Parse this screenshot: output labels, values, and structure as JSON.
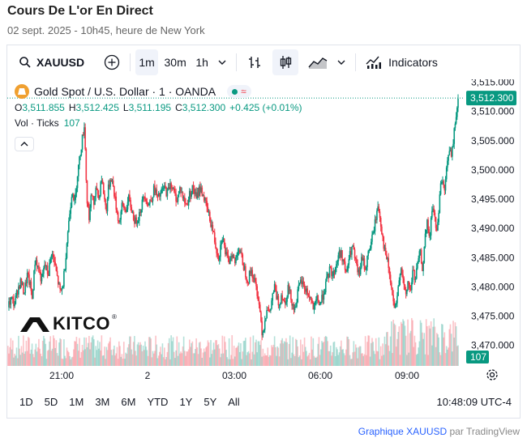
{
  "page": {
    "title": "Cours De L'or En Direct",
    "subtitle": "02 sept. 2025 - 10h45, heure de New York"
  },
  "toolbar": {
    "symbol": "XAUUSD",
    "intervals": [
      "1m",
      "30m",
      "1h"
    ],
    "active_interval": "1m",
    "indicators_label": "Indicators"
  },
  "legend": {
    "title": "Gold Spot / U.S. Dollar · 1 · OANDA",
    "open_label": "O",
    "open": "3,511.855",
    "high_label": "H",
    "high": "3,512.425",
    "low_label": "L",
    "low": "3,511.195",
    "close_label": "C",
    "close": "3,512.300",
    "change": "+0.425 (+0.01%)",
    "volume_label": "Vol · Ticks",
    "volume_value": "107"
  },
  "branding": {
    "logo_text": "KITCO"
  },
  "chart_data": {
    "type": "candlestick",
    "title": "Gold Spot / U.S. Dollar · 1 · OANDA",
    "y_ticks": [
      "3,515.000",
      "3,510.000",
      "3,505.000",
      "3,500.000",
      "3,495.000",
      "3,490.000",
      "3,485.000",
      "3,480.000",
      "3,475.000",
      "3,470.000"
    ],
    "ylim": [
      3466.5,
      3515.5
    ],
    "x_ticks": [
      "21:00",
      "2",
      "03:00",
      "06:00",
      "09:00"
    ],
    "last_price_label": "3,512.300",
    "last_price": 3512.3,
    "volume_label": "107",
    "close_path": [
      [
        0,
        3476.5
      ],
      [
        4,
        3478
      ],
      [
        8,
        3477
      ],
      [
        12,
        3479.5
      ],
      [
        16,
        3481
      ],
      [
        20,
        3479
      ],
      [
        24,
        3482
      ],
      [
        28,
        3480
      ],
      [
        30,
        3478
      ],
      [
        34,
        3485
      ],
      [
        38,
        3483
      ],
      [
        42,
        3481
      ],
      [
        46,
        3484
      ],
      [
        50,
        3482
      ],
      [
        54,
        3486
      ],
      [
        58,
        3484
      ],
      [
        62,
        3481
      ],
      [
        65,
        3479
      ],
      [
        68,
        3480
      ],
      [
        71,
        3484
      ],
      [
        74,
        3489
      ],
      [
        77,
        3493
      ],
      [
        80,
        3497
      ],
      [
        83,
        3494
      ],
      [
        86,
        3499
      ],
      [
        89,
        3502
      ],
      [
        92,
        3505
      ],
      [
        95,
        3508
      ],
      [
        98,
        3495
      ],
      [
        101,
        3492
      ],
      [
        104,
        3496
      ],
      [
        107,
        3494
      ],
      [
        110,
        3497
      ],
      [
        113,
        3495
      ],
      [
        116,
        3499
      ],
      [
        119,
        3496
      ],
      [
        122,
        3493
      ],
      [
        125,
        3497
      ],
      [
        128,
        3499
      ],
      [
        131,
        3497
      ],
      [
        134,
        3494
      ],
      [
        138,
        3491
      ],
      [
        142,
        3494
      ],
      [
        146,
        3493
      ],
      [
        150,
        3495
      ],
      [
        154,
        3493
      ],
      [
        158,
        3491
      ],
      [
        162,
        3492
      ],
      [
        166,
        3494
      ],
      [
        170,
        3496
      ],
      [
        174,
        3494
      ],
      [
        178,
        3495
      ],
      [
        182,
        3497
      ],
      [
        186,
        3495
      ],
      [
        190,
        3496
      ],
      [
        194,
        3497
      ],
      [
        198,
        3496
      ],
      [
        202,
        3498
      ],
      [
        206,
        3496
      ],
      [
        210,
        3495
      ],
      [
        214,
        3497
      ],
      [
        218,
        3495
      ],
      [
        222,
        3494
      ],
      [
        226,
        3496
      ],
      [
        230,
        3497
      ],
      [
        234,
        3495
      ],
      [
        238,
        3497
      ],
      [
        242,
        3496
      ],
      [
        246,
        3494
      ],
      [
        250,
        3492
      ],
      [
        254,
        3490
      ],
      [
        258,
        3487
      ],
      [
        262,
        3485
      ],
      [
        266,
        3489
      ],
      [
        270,
        3486
      ],
      [
        274,
        3484
      ],
      [
        278,
        3486
      ],
      [
        282,
        3484
      ],
      [
        286,
        3487
      ],
      [
        290,
        3485
      ],
      [
        294,
        3483
      ],
      [
        298,
        3481
      ],
      [
        302,
        3483
      ],
      [
        306,
        3481
      ],
      [
        310,
        3479
      ],
      [
        313,
        3476
      ],
      [
        316,
        3472
      ],
      [
        319,
        3474
      ],
      [
        322,
        3477
      ],
      [
        325,
        3475
      ],
      [
        328,
        3478
      ],
      [
        331,
        3480
      ],
      [
        334,
        3478
      ],
      [
        337,
        3477
      ],
      [
        340,
        3479
      ],
      [
        344,
        3477
      ],
      [
        348,
        3480
      ],
      [
        352,
        3478
      ],
      [
        356,
        3476
      ],
      [
        360,
        3479
      ],
      [
        364,
        3481
      ],
      [
        368,
        3480
      ],
      [
        372,
        3479
      ],
      [
        376,
        3478
      ],
      [
        380,
        3476
      ],
      [
        384,
        3478
      ],
      [
        388,
        3477
      ],
      [
        392,
        3479
      ],
      [
        396,
        3481
      ],
      [
        400,
        3483
      ],
      [
        404,
        3482
      ],
      [
        408,
        3484
      ],
      [
        412,
        3486
      ],
      [
        416,
        3485
      ],
      [
        420,
        3482
      ],
      [
        424,
        3485
      ],
      [
        428,
        3487
      ],
      [
        432,
        3484
      ],
      [
        436,
        3482
      ],
      [
        440,
        3485
      ],
      [
        444,
        3483
      ],
      [
        448,
        3486
      ],
      [
        452,
        3488
      ],
      [
        456,
        3491
      ],
      [
        460,
        3494
      ],
      [
        464,
        3490
      ],
      [
        468,
        3486
      ],
      [
        472,
        3484
      ],
      [
        476,
        3480
      ],
      [
        479,
        3477
      ],
      [
        482,
        3476
      ],
      [
        485,
        3480
      ],
      [
        488,
        3484
      ],
      [
        491,
        3481
      ],
      [
        494,
        3478
      ],
      [
        497,
        3481
      ],
      [
        500,
        3479
      ],
      [
        503,
        3483
      ],
      [
        506,
        3481
      ],
      [
        509,
        3484
      ],
      [
        512,
        3486
      ],
      [
        515,
        3483
      ],
      [
        518,
        3488
      ],
      [
        521,
        3491
      ],
      [
        524,
        3488
      ],
      [
        527,
        3494
      ],
      [
        530,
        3492
      ],
      [
        533,
        3489
      ],
      [
        536,
        3495
      ],
      [
        539,
        3499
      ],
      [
        542,
        3496
      ],
      [
        545,
        3500
      ],
      [
        548,
        3504
      ],
      [
        551,
        3502
      ],
      [
        554,
        3506
      ],
      [
        557,
        3510
      ],
      [
        560,
        3512.3
      ]
    ]
  },
  "bottom_bar": {
    "ranges": [
      "1D",
      "5D",
      "1M",
      "3M",
      "6M",
      "YTD",
      "1Y",
      "5Y",
      "All"
    ],
    "clock": "10:48:09 UTC-4"
  },
  "footer": {
    "link_text": "Graphique XAUUSD",
    "suffix": "par TradingView"
  }
}
